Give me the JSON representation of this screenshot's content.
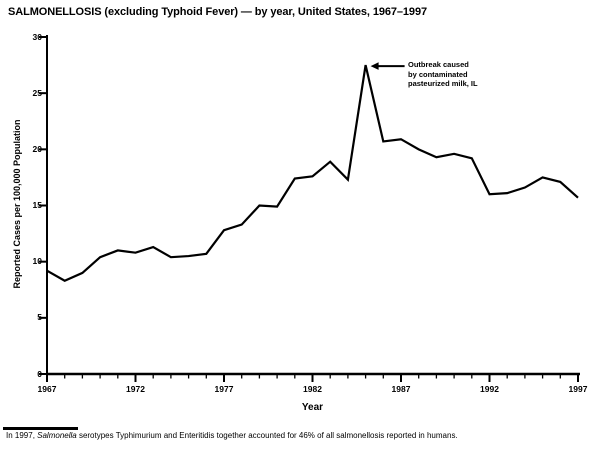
{
  "header": {
    "title": "SALMONELLOSIS (excluding Typhoid Fever) — by year, United States, 1967–1997"
  },
  "chart_data": {
    "type": "line",
    "title": "SALMONELLOSIS (excluding Typhoid Fever) — by year, United States, 1967–1997",
    "xlabel": "Year",
    "ylabel": "Reported Cases per 100,000 Population",
    "xlim": [
      1967,
      1997
    ],
    "ylim": [
      0,
      30
    ],
    "yticks": [
      0,
      5,
      10,
      15,
      20,
      25,
      30
    ],
    "xticks": [
      1967,
      1972,
      1977,
      1982,
      1987,
      1992,
      1997
    ],
    "grid": false,
    "legend": false,
    "line_color": "#000000",
    "x": [
      1967,
      1968,
      1969,
      1970,
      1971,
      1972,
      1973,
      1974,
      1975,
      1976,
      1977,
      1978,
      1979,
      1980,
      1981,
      1982,
      1983,
      1984,
      1985,
      1986,
      1987,
      1988,
      1989,
      1990,
      1991,
      1992,
      1993,
      1994,
      1995,
      1996,
      1997
    ],
    "values": [
      9.2,
      8.3,
      9.0,
      10.4,
      11.0,
      10.8,
      11.3,
      10.4,
      10.5,
      10.7,
      12.8,
      13.3,
      15.0,
      14.9,
      17.4,
      17.6,
      18.9,
      17.3,
      27.5,
      20.7,
      20.9,
      20.0,
      19.3,
      19.6,
      19.2,
      16.0,
      16.1,
      16.6,
      17.5,
      17.1,
      15.7
    ],
    "annotation": {
      "text": "Outbreak caused by contaminated pasteurized milk, IL",
      "lines": [
        "Outbreak caused",
        "by contaminated",
        "pasteurized milk, IL"
      ],
      "target_year": 1985,
      "target_value": 27.5
    }
  },
  "footnote": {
    "prefix": "In 1997, ",
    "italic": "Salmonella",
    "rest": " serotypes Typhimurium and Enteritidis together accounted for 46% of all salmonellosis reported in humans."
  }
}
